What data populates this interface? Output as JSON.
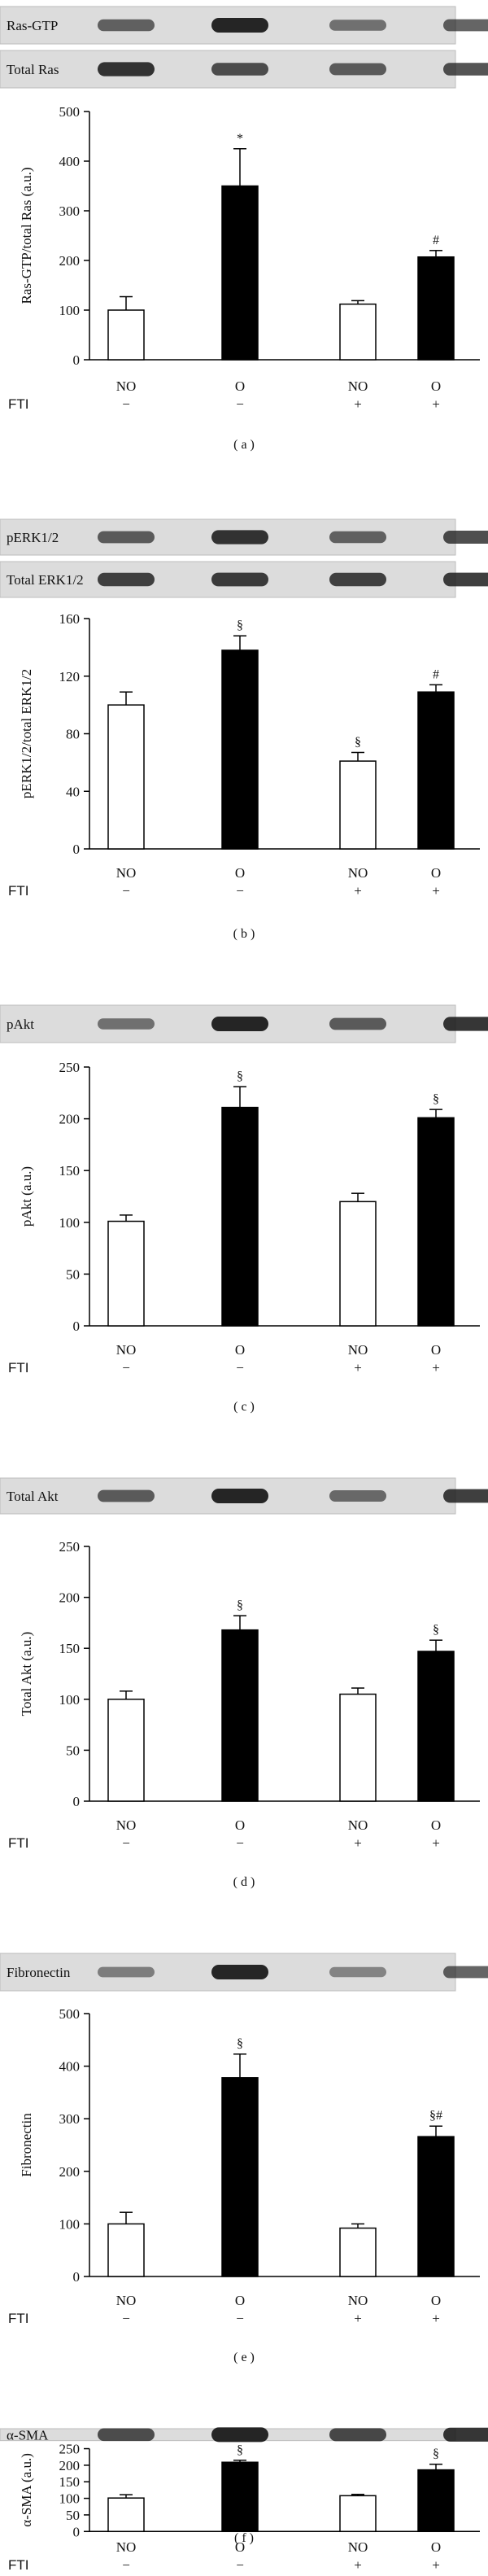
{
  "fti_label": "FTI",
  "fti_states": [
    "−",
    "−",
    "+",
    "+"
  ],
  "group_labels": [
    "NO",
    "O",
    "NO",
    "O"
  ],
  "colors": {
    "control_fill": "#ffffff",
    "treated_fill": "#000000",
    "axis": "#000000",
    "band_strip": "#dcdcdc",
    "band": "#1a1a1a"
  },
  "chart_data": [
    {
      "type": "bar",
      "panel_label": "( a )",
      "blots": [
        "Ras-GTP",
        "Total Ras"
      ],
      "ylabel": "Ras-GTP/total Ras (a.u.)",
      "ylim": [
        0,
        500
      ],
      "yticks": [
        0,
        100,
        200,
        300,
        400,
        500
      ],
      "categories": [
        "NO",
        "O",
        "NO",
        "O"
      ],
      "values": [
        100,
        350,
        112,
        207
      ],
      "errors": [
        27,
        75,
        7,
        13
      ],
      "annotations": [
        "",
        "*",
        "",
        "#"
      ]
    },
    {
      "type": "bar",
      "panel_label": "( b )",
      "blots": [
        "pERK1/2",
        "Total ERK1/2"
      ],
      "ylabel": "pERK1/2/total ERK1/2",
      "ylim": [
        0,
        160
      ],
      "yticks": [
        0,
        40,
        80,
        120,
        160
      ],
      "categories": [
        "NO",
        "O",
        "NO",
        "O"
      ],
      "values": [
        100,
        138,
        61,
        109
      ],
      "errors": [
        9,
        10,
        6,
        5
      ],
      "annotations": [
        "",
        "§",
        "§",
        "#"
      ]
    },
    {
      "type": "bar",
      "panel_label": "( c )",
      "blots": [
        "pAkt"
      ],
      "ylabel": "pAkt (a.u.)",
      "ylim": [
        0,
        250
      ],
      "yticks": [
        0,
        50,
        100,
        150,
        200,
        250
      ],
      "categories": [
        "NO",
        "O",
        "NO",
        "O"
      ],
      "values": [
        101,
        211,
        120,
        201
      ],
      "errors": [
        6,
        20,
        8,
        8
      ],
      "annotations": [
        "",
        "§",
        "",
        "§"
      ]
    },
    {
      "type": "bar",
      "panel_label": "( d )",
      "blots": [
        "Total Akt"
      ],
      "ylabel": "Total Akt (a.u.)",
      "ylim": [
        0,
        250
      ],
      "yticks": [
        0,
        50,
        100,
        150,
        200,
        250
      ],
      "categories": [
        "NO",
        "O",
        "NO",
        "O"
      ],
      "values": [
        100,
        168,
        105,
        147
      ],
      "errors": [
        8,
        14,
        6,
        11
      ],
      "annotations": [
        "",
        "§",
        "",
        "§"
      ]
    },
    {
      "type": "bar",
      "panel_label": "( e )",
      "blots": [
        "Fibronectin"
      ],
      "ylabel": "Fibronectin",
      "ylim": [
        0,
        500
      ],
      "yticks": [
        0,
        100,
        200,
        300,
        400,
        500
      ],
      "categories": [
        "NO",
        "O",
        "NO",
        "O"
      ],
      "values": [
        100,
        378,
        92,
        266
      ],
      "errors": [
        22,
        45,
        8,
        20
      ],
      "annotations": [
        "",
        "§",
        "",
        "§#"
      ]
    },
    {
      "type": "bar",
      "panel_label": "( f )",
      "blots": [
        "α-SMA"
      ],
      "ylabel": "α-SMA (a.u.)",
      "ylim": [
        0,
        250
      ],
      "yticks": [
        0,
        50,
        100,
        150,
        200,
        250
      ],
      "categories": [
        "NO",
        "O",
        "NO",
        "O"
      ],
      "values": [
        101,
        209,
        108,
        186
      ],
      "errors": [
        10,
        6,
        4,
        17
      ],
      "annotations": [
        "",
        "§",
        "",
        "§"
      ]
    }
  ]
}
